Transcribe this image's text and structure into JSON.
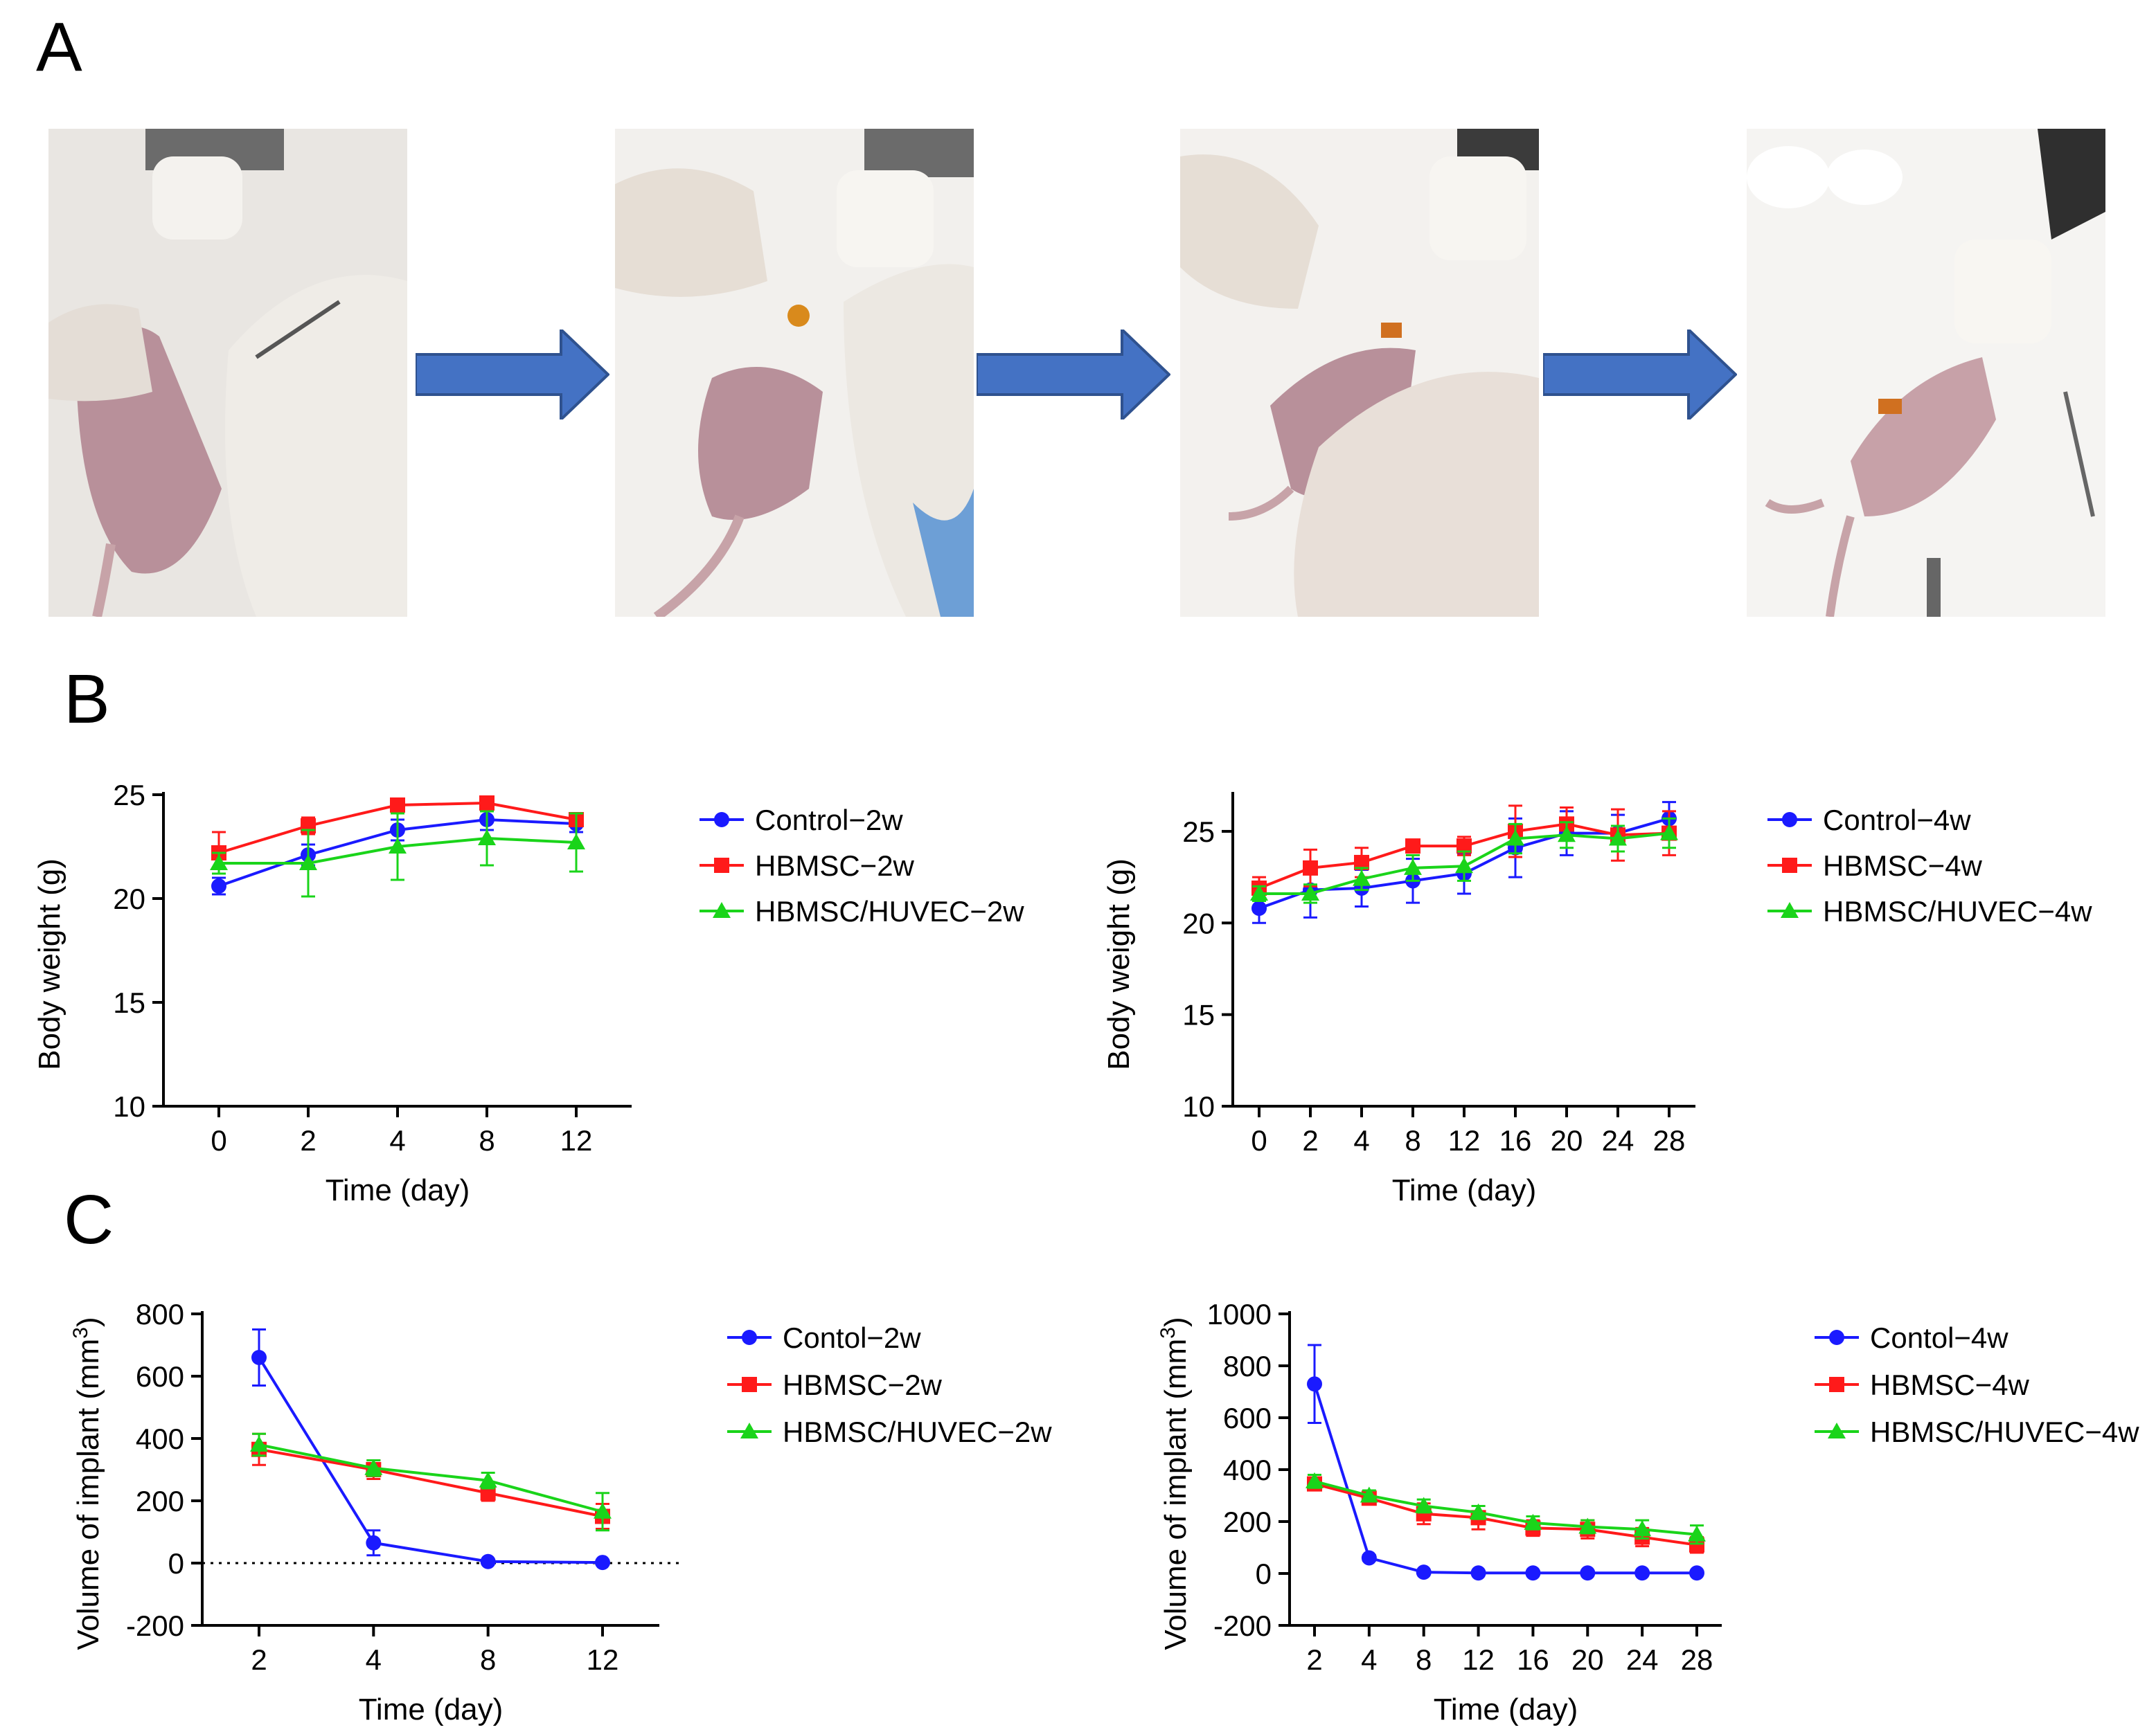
{
  "panels": {
    "a": "A",
    "b": "B",
    "c": "C"
  },
  "photos": [
    {
      "name": "step-1-photo"
    },
    {
      "name": "step-2-photo"
    },
    {
      "name": "step-3-photo"
    },
    {
      "name": "step-4-photo"
    }
  ],
  "chart_data": [
    {
      "id": "b-left",
      "type": "line",
      "title": "",
      "xlabel": "Time (day)",
      "ylabel": "Body weight (g)",
      "categories": [
        "0",
        "2",
        "4",
        "8",
        "12"
      ],
      "ylim": [
        10,
        25
      ],
      "yticks": [
        10,
        15,
        20,
        25
      ],
      "series": [
        {
          "name": "Control−2w",
          "color": "#1a1aff",
          "marker": "circle",
          "values": [
            20.6,
            22.1,
            23.3,
            23.8,
            23.6
          ],
          "errors": [
            0.4,
            0.5,
            0.5,
            0.5,
            0.4
          ]
        },
        {
          "name": "HBMSC−2w",
          "color": "#ff1a1a",
          "marker": "square",
          "values": [
            22.2,
            23.5,
            24.5,
            24.6,
            23.8
          ],
          "errors": [
            1.0,
            0.4,
            0.3,
            0.3,
            0.3
          ]
        },
        {
          "name": "HBMSC/HUVEC−2w",
          "color": "#1ad41a",
          "marker": "triangle",
          "values": [
            21.7,
            21.7,
            22.5,
            22.9,
            22.7
          ],
          "errors": [
            0.5,
            1.6,
            1.6,
            1.3,
            1.4
          ]
        }
      ]
    },
    {
      "id": "b-right",
      "type": "line",
      "title": "",
      "xlabel": "Time (day)",
      "ylabel": "Body weight (g)",
      "categories": [
        "0",
        "2",
        "4",
        "8",
        "12",
        "16",
        "20",
        "24",
        "28"
      ],
      "ylim": [
        10,
        27
      ],
      "yticks": [
        10,
        15,
        20,
        25
      ],
      "series": [
        {
          "name": "Control−4w",
          "color": "#1a1aff",
          "marker": "circle",
          "values": [
            20.8,
            21.8,
            21.9,
            22.3,
            22.7,
            24.1,
            24.9,
            24.9,
            25.7
          ],
          "errors": [
            0.8,
            1.5,
            1.0,
            1.2,
            1.1,
            1.6,
            1.2,
            1.0,
            0.9
          ]
        },
        {
          "name": "HBMSC−4w",
          "color": "#ff1a1a",
          "marker": "square",
          "values": [
            21.9,
            23.0,
            23.3,
            24.2,
            24.2,
            25.0,
            25.4,
            24.8,
            24.9
          ],
          "errors": [
            0.6,
            1.0,
            0.8,
            0.3,
            0.5,
            1.4,
            0.9,
            1.4,
            1.2
          ]
        },
        {
          "name": "HBMSC/HUVEC−4w",
          "color": "#1ad41a",
          "marker": "triangle",
          "values": [
            21.6,
            21.6,
            22.4,
            23.0,
            23.1,
            24.6,
            24.8,
            24.6,
            24.9
          ],
          "errors": [
            0.4,
            0.5,
            0.6,
            0.7,
            0.8,
            0.8,
            0.7,
            0.7,
            0.8
          ]
        }
      ]
    },
    {
      "id": "c-left",
      "type": "line",
      "title": "",
      "xlabel": "Time (day)",
      "ylabel": "Volume of implant (mm",
      "ylabel_sup": "3",
      "ylabel_end": ")",
      "categories": [
        "2",
        "4",
        "8",
        "12"
      ],
      "ylim": [
        -200,
        800
      ],
      "yticks": [
        -200,
        0,
        200,
        400,
        600,
        800
      ],
      "zero_line": true,
      "series": [
        {
          "name": "Contol−2w",
          "color": "#1a1aff",
          "marker": "circle",
          "values": [
            660,
            65,
            5,
            2
          ],
          "errors": [
            90,
            40,
            5,
            3
          ]
        },
        {
          "name": "HBMSC−2w",
          "color": "#ff1a1a",
          "marker": "square",
          "values": [
            365,
            300,
            225,
            150
          ],
          "errors": [
            50,
            30,
            25,
            40
          ]
        },
        {
          "name": "HBMSC/HUVEC−2w",
          "color": "#1ad41a",
          "marker": "triangle",
          "values": [
            380,
            305,
            265,
            165
          ],
          "errors": [
            35,
            25,
            25,
            60
          ]
        }
      ]
    },
    {
      "id": "c-right",
      "type": "line",
      "title": "",
      "xlabel": "Time (day)",
      "ylabel": "Volume of implant (mm",
      "ylabel_sup": "3",
      "ylabel_end": ")",
      "categories": [
        "2",
        "4",
        "8",
        "12",
        "16",
        "20",
        "24",
        "28"
      ],
      "ylim": [
        -200,
        1000
      ],
      "yticks": [
        -200,
        0,
        200,
        400,
        600,
        800,
        1000
      ],
      "series": [
        {
          "name": "Contol−4w",
          "color": "#1a1aff",
          "marker": "circle",
          "values": [
            730,
            60,
            5,
            2,
            2,
            2,
            2,
            2
          ],
          "errors": [
            150,
            10,
            5,
            3,
            3,
            3,
            3,
            3
          ]
        },
        {
          "name": "HBMSC−4w",
          "color": "#ff1a1a",
          "marker": "square",
          "values": [
            345,
            290,
            230,
            215,
            175,
            170,
            140,
            110
          ],
          "errors": [
            20,
            20,
            40,
            45,
            30,
            35,
            35,
            30
          ]
        },
        {
          "name": "HBMSC/HUVEC−4w",
          "color": "#1ad41a",
          "marker": "triangle",
          "values": [
            355,
            300,
            260,
            235,
            195,
            180,
            170,
            150
          ],
          "errors": [
            25,
            20,
            25,
            25,
            25,
            25,
            35,
            35
          ]
        }
      ]
    }
  ]
}
